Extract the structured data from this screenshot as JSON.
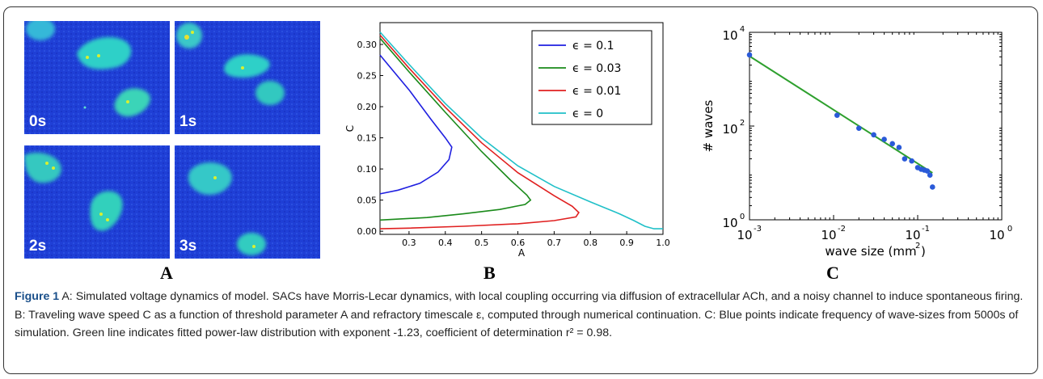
{
  "panel_a": {
    "letter": "A",
    "frames": [
      {
        "label": "0s"
      },
      {
        "label": "1s"
      },
      {
        "label": "2s"
      },
      {
        "label": "3s"
      }
    ]
  },
  "panel_b": {
    "letter": "B"
  },
  "panel_c": {
    "letter": "C"
  },
  "chart_data": [
    {
      "type": "line",
      "xlabel": "A",
      "ylabel": "C",
      "xlim": [
        0.22,
        1.0
      ],
      "ylim": [
        -0.005,
        0.335
      ],
      "xticks": [
        "0.3",
        "0.4",
        "0.5",
        "0.6",
        "0.7",
        "0.8",
        "0.9",
        "1.0"
      ],
      "yticks": [
        "0.00",
        "0.05",
        "0.10",
        "0.15",
        "0.20",
        "0.25",
        "0.30"
      ],
      "legend_position": "top-right",
      "grid": false,
      "series": [
        {
          "name": "ϵ = 0.1",
          "color": "#1f1fe0",
          "points": [
            [
              0.22,
              0.283
            ],
            [
              0.3,
              0.227
            ],
            [
              0.36,
              0.18
            ],
            [
              0.4,
              0.15
            ],
            [
              0.418,
              0.135
            ],
            [
              0.41,
              0.115
            ],
            [
              0.38,
              0.095
            ],
            [
              0.33,
              0.077
            ],
            [
              0.27,
              0.066
            ],
            [
              0.22,
              0.06
            ]
          ]
        },
        {
          "name": "ϵ = 0.03",
          "color": "#1a8a1a",
          "points": [
            [
              0.22,
              0.31
            ],
            [
              0.3,
              0.256
            ],
            [
              0.4,
              0.191
            ],
            [
              0.5,
              0.128
            ],
            [
              0.58,
              0.082
            ],
            [
              0.625,
              0.058
            ],
            [
              0.635,
              0.05
            ],
            [
              0.62,
              0.043
            ],
            [
              0.55,
              0.035
            ],
            [
              0.45,
              0.028
            ],
            [
              0.35,
              0.022
            ],
            [
              0.22,
              0.018
            ]
          ]
        },
        {
          "name": "ϵ = 0.01",
          "color": "#e02020",
          "points": [
            [
              0.22,
              0.315
            ],
            [
              0.3,
              0.262
            ],
            [
              0.4,
              0.199
            ],
            [
              0.5,
              0.142
            ],
            [
              0.6,
              0.094
            ],
            [
              0.7,
              0.057
            ],
            [
              0.75,
              0.04
            ],
            [
              0.768,
              0.03
            ],
            [
              0.76,
              0.023
            ],
            [
              0.7,
              0.017
            ],
            [
              0.6,
              0.012
            ],
            [
              0.45,
              0.008
            ],
            [
              0.3,
              0.005
            ],
            [
              0.22,
              0.004
            ]
          ]
        },
        {
          "name": "ϵ = 0",
          "color": "#20c0c8",
          "points": [
            [
              0.22,
              0.32
            ],
            [
              0.3,
              0.268
            ],
            [
              0.4,
              0.205
            ],
            [
              0.5,
              0.15
            ],
            [
              0.6,
              0.105
            ],
            [
              0.7,
              0.072
            ],
            [
              0.8,
              0.047
            ],
            [
              0.88,
              0.028
            ],
            [
              0.92,
              0.017
            ],
            [
              0.95,
              0.008
            ],
            [
              0.975,
              0.004
            ],
            [
              1.0,
              0.004
            ]
          ]
        }
      ]
    },
    {
      "type": "scatter",
      "xlabel": "wave size (mm²)",
      "xlabel_text": "wave size (mm",
      "xlabel_sup": "2",
      "xlabel_close": ")",
      "ylabel": "# waves",
      "xscale": "log",
      "yscale": "log",
      "xlim": [
        0.001,
        1
      ],
      "ylim": [
        1,
        10000
      ],
      "xticks": [
        {
          "base": "10",
          "exp": "-3",
          "value": 0.001
        },
        {
          "base": "10",
          "exp": "-2",
          "value": 0.01
        },
        {
          "base": "10",
          "exp": "-1",
          "value": 0.1
        },
        {
          "base": "10",
          "exp": "0",
          "value": 1
        }
      ],
      "yticks": [
        {
          "base": "10",
          "exp": "0",
          "value": 1
        },
        {
          "base": "10",
          "exp": "2",
          "value": 100
        },
        {
          "base": "10",
          "exp": "4",
          "value": 10000
        }
      ],
      "points_color": "#2a5ad8",
      "fit_color": "#2ea02e",
      "points": [
        [
          0.001,
          3300
        ],
        [
          0.011,
          170
        ],
        [
          0.02,
          90
        ],
        [
          0.03,
          65
        ],
        [
          0.04,
          52
        ],
        [
          0.05,
          42
        ],
        [
          0.06,
          35
        ],
        [
          0.07,
          20
        ],
        [
          0.085,
          18
        ],
        [
          0.1,
          13
        ],
        [
          0.11,
          12
        ],
        [
          0.12,
          11.5
        ],
        [
          0.13,
          11
        ],
        [
          0.14,
          9
        ],
        [
          0.15,
          5
        ]
      ],
      "fit_line": [
        [
          0.001,
          3100
        ],
        [
          0.15,
          10
        ]
      ]
    }
  ],
  "caption": {
    "label": "Figure 1",
    "text": " A: Simulated voltage dynamics of model. SACs have Morris-Lecar dynamics, with local coupling occurring via diffusion of extracellular ACh, and a noisy channel to induce spontaneous firing. B: Traveling wave speed C as a function of threshold parameter A and refractory timescale ε, computed through numerical continuation. C: Blue points indicate frequency of wave-sizes from 5000s of simulation. Green line indicates fitted power-law distribution with exponent -1.23, coefficient of determination r² = 0.98."
  }
}
